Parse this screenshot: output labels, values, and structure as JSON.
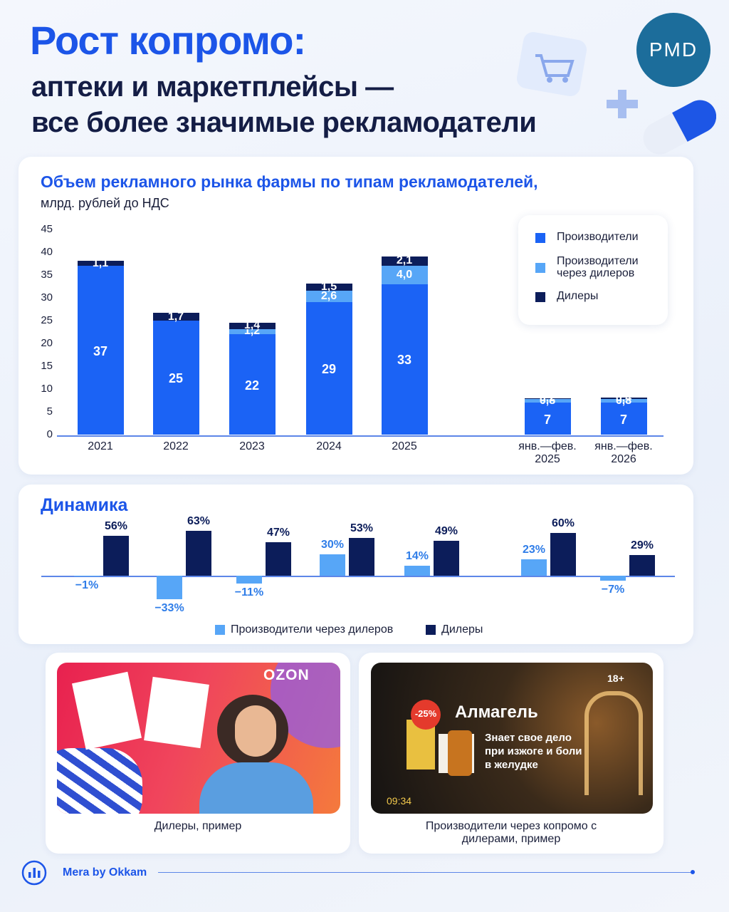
{
  "header": {
    "title": "Рост копромо:",
    "subtitle_line_1": "аптеки и маркетплейсы —",
    "subtitle_line_2": "все более значимые рекламодатели",
    "logo": "PMD"
  },
  "chart_data": [
    {
      "type": "stacked_bar",
      "title": "Объем рекламного рынка фармы по типам рекламодателей,",
      "subtitle": "млрд. рублей до НДС",
      "categories": [
        "2021",
        "2022",
        "2023",
        "2024",
        "2025",
        "янв.—фев. 2025",
        "янв.—фев. 2026"
      ],
      "series": [
        {
          "name": "Производители",
          "color": "#1b63f5",
          "values": [
            37,
            25,
            22,
            29,
            33,
            7,
            7
          ],
          "value_labels": [
            "37",
            "25",
            "22",
            "29",
            "33",
            "7",
            "7"
          ]
        },
        {
          "name": "Производители через дилеров",
          "color": "#57a6f7",
          "values": [
            null,
            null,
            1.2,
            2.6,
            4.0,
            0.8,
            0.8
          ],
          "value_labels": [
            null,
            null,
            "1,2",
            "2,6",
            "4,0",
            "0,8",
            "0,8"
          ]
        },
        {
          "name": "Дилеры",
          "color": "#0c1d5a",
          "values": [
            1.1,
            1.7,
            1.4,
            1.5,
            2.1,
            0.2,
            0.4
          ],
          "value_labels": [
            "1,1",
            "1,7",
            "1,4",
            "1,5",
            "2,1",
            "0,2",
            "0,4"
          ]
        }
      ],
      "ylim": [
        0,
        45
      ],
      "yticks": [
        0,
        5,
        10,
        15,
        20,
        25,
        30,
        35,
        40,
        45
      ],
      "grid": false,
      "legend": "top-right"
    },
    {
      "type": "grouped_bar",
      "title": "Динамика",
      "categories": [
        null,
        null,
        null,
        null,
        null,
        null,
        null
      ],
      "series": [
        {
          "name": "Производители через дилеров",
          "color": "#57a6f7",
          "values": [
            -1,
            -33,
            -11,
            30,
            14,
            23,
            -7
          ],
          "value_labels": [
            "−1%",
            "−33%",
            "−11%",
            "30%",
            "14%",
            "23%",
            "−7%"
          ]
        },
        {
          "name": "Дилеры",
          "color": "#0c1d5a",
          "values": [
            56,
            63,
            47,
            53,
            49,
            60,
            29
          ],
          "value_labels": [
            "56%",
            "63%",
            "47%",
            "53%",
            "49%",
            "60%",
            "29%"
          ]
        }
      ],
      "legend": "bottom"
    }
  ],
  "examples": [
    {
      "caption": "Дилеры, пример",
      "brand": "OZON"
    },
    {
      "caption": "Производители через копромо с дилерами, пример",
      "discount": "-25%",
      "brand": "Алмагель",
      "tagline": "Знает свое дело при изжоге и боли в желудке",
      "age_rating": "18+",
      "clock": "09:34"
    }
  ],
  "footer": {
    "source": "Mera by Okkam"
  }
}
